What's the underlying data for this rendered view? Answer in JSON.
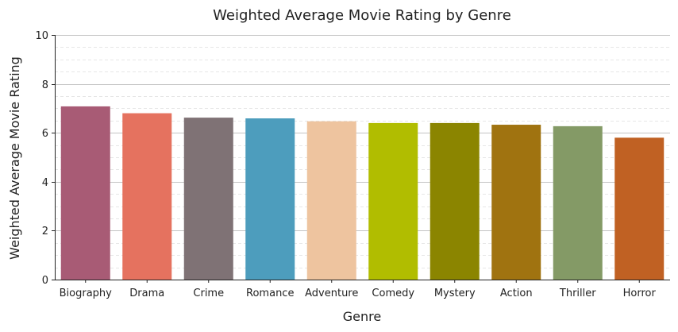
{
  "chart_data": {
    "type": "bar",
    "title": "Weighted Average Movie Rating by Genre",
    "xlabel": "Genre",
    "ylabel": "Weighted Average Movie Rating",
    "categories": [
      "Biography",
      "Drama",
      "Crime",
      "Romance",
      "Adventure",
      "Comedy",
      "Mystery",
      "Action",
      "Thriller",
      "Horror"
    ],
    "values": [
      7.08,
      6.8,
      6.62,
      6.59,
      6.47,
      6.4,
      6.4,
      6.33,
      6.27,
      5.8
    ],
    "colors": [
      "#a85b75",
      "#e5725f",
      "#7f7275",
      "#4d9dbd",
      "#eec49f",
      "#b1bd00",
      "#8b8500",
      "#a07310",
      "#849a66",
      "#c06123"
    ],
    "ylim": [
      0,
      10
    ],
    "yticks": [
      0,
      2,
      4,
      6,
      8,
      10
    ],
    "grid": {
      "major": true,
      "minor": true
    }
  }
}
